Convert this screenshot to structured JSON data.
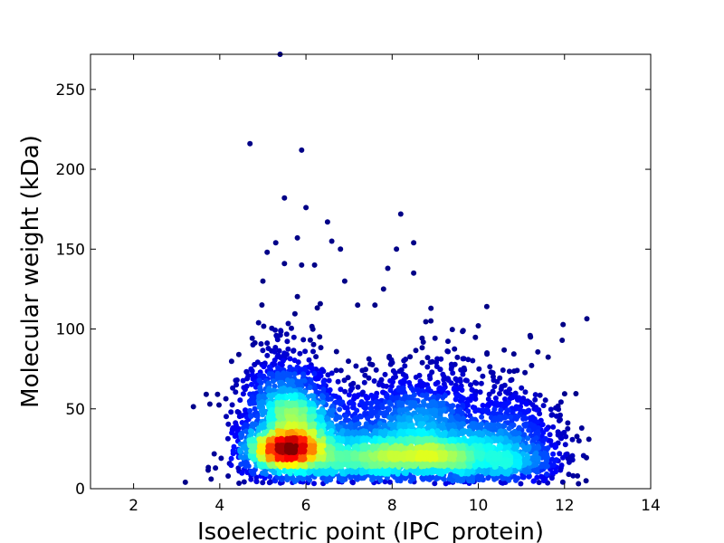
{
  "chart_data": {
    "type": "scatter",
    "title": "",
    "xlabel": "Isoelectric point (IPC_protein)",
    "ylabel": "Molecular weight (kDa)",
    "xlim": [
      1,
      14
    ],
    "ylim": [
      0,
      272
    ],
    "xticks": [
      2,
      4,
      6,
      8,
      10,
      12,
      14
    ],
    "yticks": [
      0,
      50,
      100,
      150,
      200,
      250
    ],
    "grid": false,
    "legend": "none",
    "color_encoding": "point density (jet colormap: dark blue = low, dark red = high)",
    "colormap": [
      "#00007f",
      "#0000ff",
      "#007fff",
      "#00ffff",
      "#7fff7f",
      "#ffff00",
      "#ff7f00",
      "#ff0000",
      "#7f0000"
    ],
    "density_clusters": [
      {
        "center_x": 5.6,
        "center_y": 30,
        "peak": "dark red"
      },
      {
        "center_x": 8.6,
        "center_y": 25,
        "peak": "cyan"
      }
    ],
    "outlier_points": [
      {
        "x": 5.4,
        "y": 272
      },
      {
        "x": 4.7,
        "y": 216
      },
      {
        "x": 5.9,
        "y": 212
      },
      {
        "x": 5.5,
        "y": 182
      },
      {
        "x": 6.0,
        "y": 176
      },
      {
        "x": 8.2,
        "y": 172
      },
      {
        "x": 6.5,
        "y": 167
      },
      {
        "x": 5.8,
        "y": 157
      },
      {
        "x": 8.5,
        "y": 154
      },
      {
        "x": 6.6,
        "y": 155
      },
      {
        "x": 5.3,
        "y": 154
      },
      {
        "x": 8.1,
        "y": 150
      },
      {
        "x": 6.8,
        "y": 150
      },
      {
        "x": 5.1,
        "y": 148
      },
      {
        "x": 5.5,
        "y": 141
      },
      {
        "x": 5.9,
        "y": 140
      },
      {
        "x": 6.2,
        "y": 140
      },
      {
        "x": 7.9,
        "y": 138
      },
      {
        "x": 8.5,
        "y": 135
      },
      {
        "x": 6.9,
        "y": 130
      },
      {
        "x": 5.0,
        "y": 130
      },
      {
        "x": 7.8,
        "y": 125
      },
      {
        "x": 8.9,
        "y": 113
      },
      {
        "x": 10.0,
        "y": 102
      },
      {
        "x": 7.2,
        "y": 115
      },
      {
        "x": 7.6,
        "y": 115
      },
      {
        "x": 4.4,
        "y": 68
      },
      {
        "x": 4.3,
        "y": 63
      },
      {
        "x": 10.2,
        "y": 85
      },
      {
        "x": 10.9,
        "y": 74
      },
      {
        "x": 11.0,
        "y": 63
      },
      {
        "x": 11.3,
        "y": 50
      },
      {
        "x": 11.7,
        "y": 46
      },
      {
        "x": 11.9,
        "y": 46
      },
      {
        "x": 12.1,
        "y": 9
      },
      {
        "x": 12.3,
        "y": 8
      },
      {
        "x": 12.5,
        "y": 5
      },
      {
        "x": 3.2,
        "y": 4
      },
      {
        "x": 3.8,
        "y": 6
      },
      {
        "x": 3.9,
        "y": 13
      }
    ]
  }
}
